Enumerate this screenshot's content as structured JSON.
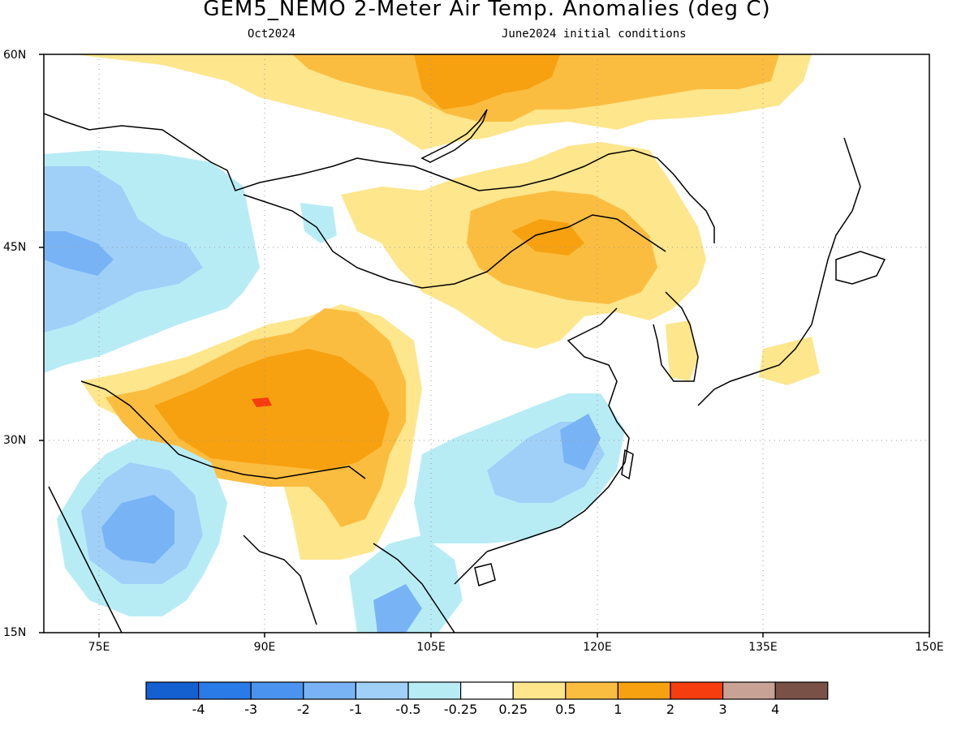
{
  "title": "GEM5_NEMO 2-Meter Air Temp. Anomalies (deg C)",
  "subtitle_left": "Oct2024",
  "subtitle_right": "June2024 initial conditions",
  "lat_ticks": [
    "60N",
    "45N",
    "30N",
    "15N"
  ],
  "lon_ticks": [
    "75E",
    "90E",
    "105E",
    "120E",
    "135E",
    "150E"
  ],
  "colorbar": {
    "labels": [
      "-4",
      "-3",
      "-2",
      "-1",
      "-0.5",
      "-0.25",
      "0.25",
      "0.5",
      "1",
      "2",
      "3",
      "4"
    ],
    "colors": [
      "#1560d0",
      "#2a7ae8",
      "#4a94f0",
      "#78b4f5",
      "#a0d0f8",
      "#b8ecf5",
      "#ffffff",
      "#fde68c",
      "#fbbd40",
      "#f7a110",
      "#f53d10",
      "#c9a296",
      "#7a5146"
    ]
  }
}
